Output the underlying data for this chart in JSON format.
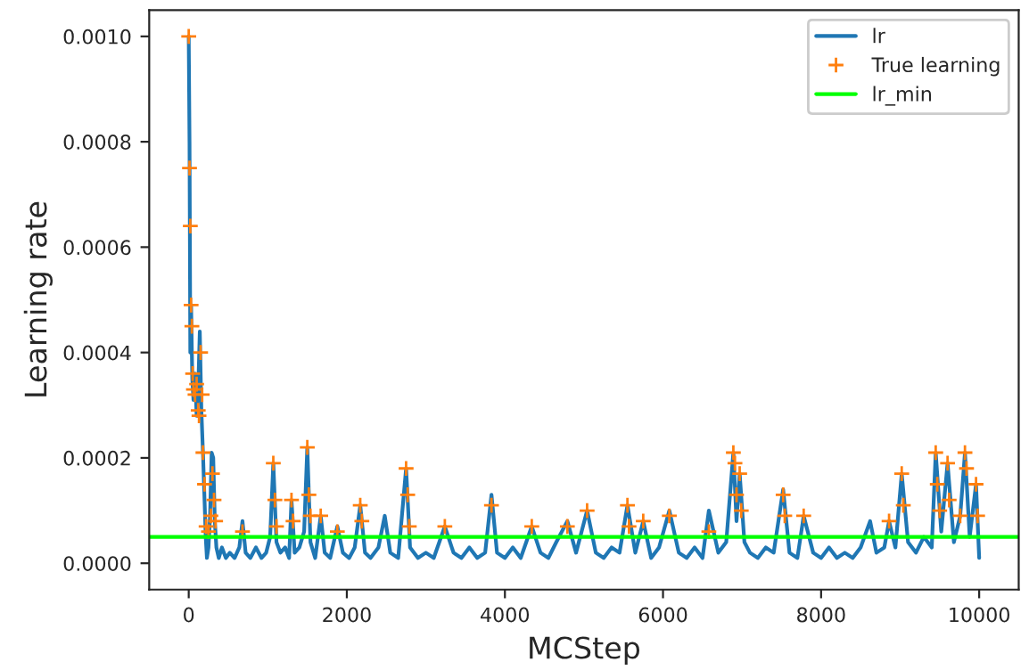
{
  "chart_data": {
    "type": "line",
    "xlabel": "MCStep",
    "ylabel": "Learning rate",
    "xlim": [
      -500,
      10500
    ],
    "xticks": [
      0,
      2000,
      4000,
      6000,
      8000,
      10000
    ],
    "ylim": [
      -5e-05,
      0.00105
    ],
    "yticks": [
      {
        "value": 0,
        "label": "0.0000"
      },
      {
        "value": 0.0002,
        "label": "0.0002"
      },
      {
        "value": 0.0004,
        "label": "0.0004"
      },
      {
        "value": 0.0006,
        "label": "0.0006"
      },
      {
        "value": 0.0008,
        "label": "0.0008"
      },
      {
        "value": 0.001,
        "label": "0.0010"
      }
    ],
    "grid": false,
    "legend": "top right",
    "series": [
      {
        "name": "lr",
        "color": "#1f77b4",
        "line_style": "solid",
        "x": [
          0,
          10,
          20,
          30,
          45,
          60,
          80,
          100,
          120,
          140,
          160,
          180,
          200,
          215,
          230,
          250,
          270,
          290,
          310,
          330,
          350,
          380,
          420,
          470,
          520,
          580,
          640,
          680,
          720,
          780,
          850,
          920,
          980,
          1030,
          1070,
          1110,
          1160,
          1220,
          1270,
          1300,
          1340,
          1400,
          1460,
          1500,
          1540,
          1600,
          1670,
          1720,
          1790,
          1880,
          1950,
          2030,
          2100,
          2170,
          2230,
          2300,
          2400,
          2480,
          2550,
          2650,
          2750,
          2800,
          2900,
          3000,
          3100,
          3240,
          3350,
          3450,
          3550,
          3650,
          3750,
          3830,
          3900,
          4000,
          4100,
          4200,
          4340,
          4450,
          4550,
          4650,
          4790,
          4900,
          5040,
          5150,
          5250,
          5350,
          5450,
          5550,
          5650,
          5750,
          5850,
          5950,
          6080,
          6200,
          6300,
          6400,
          6500,
          6580,
          6700,
          6800,
          6890,
          6930,
          6970,
          7030,
          7100,
          7200,
          7300,
          7400,
          7520,
          7600,
          7700,
          7780,
          7900,
          8000,
          8100,
          8200,
          8300,
          8400,
          8500,
          8620,
          8700,
          8800,
          8860,
          8940,
          9020,
          9100,
          9200,
          9300,
          9400,
          9450,
          9520,
          9600,
          9680,
          9760,
          9820,
          9880,
          9960,
          10000
        ],
        "values": [
          0.001,
          0.0008,
          0.0004,
          0.00049,
          0.00035,
          0.00031,
          0.00036,
          0.00028,
          0.00033,
          0.00044,
          0.00029,
          0.00021,
          0.00012,
          5e-05,
          1e-05,
          3e-05,
          9e-05,
          0.00021,
          0.0002,
          8e-05,
          3e-05,
          1e-05,
          3e-05,
          1e-05,
          2e-05,
          1e-05,
          3e-05,
          8e-05,
          2e-05,
          1e-05,
          3e-05,
          1e-05,
          2e-05,
          5e-05,
          0.00019,
          4e-05,
          2e-05,
          3e-05,
          1e-05,
          0.00012,
          2e-05,
          3e-05,
          6e-05,
          0.00022,
          4e-05,
          1e-05,
          9e-05,
          2e-05,
          1e-05,
          7e-05,
          2e-05,
          1e-05,
          3e-05,
          0.00011,
          2e-05,
          1e-05,
          3e-05,
          9e-05,
          2e-05,
          1e-05,
          0.00018,
          3e-05,
          1e-05,
          2e-05,
          1e-05,
          7e-05,
          2e-05,
          1e-05,
          3e-05,
          1e-05,
          2e-05,
          0.00013,
          2e-05,
          1e-05,
          3e-05,
          1e-05,
          7e-05,
          2e-05,
          1e-05,
          4e-05,
          8e-05,
          2e-05,
          0.0001,
          2e-05,
          1e-05,
          3e-05,
          2e-05,
          0.00011,
          2e-05,
          8e-05,
          1e-05,
          3e-05,
          0.0001,
          2e-05,
          1e-05,
          3e-05,
          1e-05,
          0.0001,
          2e-05,
          4e-05,
          0.00021,
          8e-05,
          0.00017,
          4e-05,
          2e-05,
          1e-05,
          3e-05,
          2e-05,
          0.00014,
          2e-05,
          1e-05,
          9e-05,
          2e-05,
          1e-05,
          3e-05,
          1e-05,
          2e-05,
          1e-05,
          3e-05,
          8e-05,
          2e-05,
          3e-05,
          8e-05,
          3e-05,
          0.00017,
          4e-05,
          2e-05,
          5e-05,
          3e-05,
          0.00021,
          6e-05,
          0.00019,
          4e-05,
          9e-05,
          0.00021,
          5e-05,
          0.00015,
          1e-05
        ]
      },
      {
        "name": "True learning",
        "type": "scatter",
        "color": "#ff7f0e",
        "marker": "cross",
        "x": [
          0,
          10,
          20,
          30,
          40,
          50,
          60,
          80,
          100,
          120,
          130,
          150,
          170,
          180,
          200,
          220,
          250,
          280,
          300,
          320,
          340,
          680,
          1070,
          1090,
          1110,
          1300,
          1320,
          1500,
          1520,
          1540,
          1670,
          1880,
          2170,
          2190,
          2750,
          2770,
          2790,
          3240,
          3830,
          4340,
          4790,
          5040,
          5550,
          5570,
          5750,
          6080,
          6580,
          6890,
          6910,
          6930,
          6970,
          6990,
          7520,
          7540,
          7780,
          8860,
          9020,
          9040,
          9450,
          9470,
          9500,
          9600,
          9620,
          9760,
          9820,
          9840,
          9960,
          9980
        ],
        "values": [
          0.001,
          0.00075,
          0.00064,
          0.00049,
          0.00045,
          0.00036,
          0.00033,
          0.00032,
          0.00034,
          0.00029,
          0.00028,
          0.0004,
          0.00032,
          0.00021,
          0.00015,
          7e-05,
          6e-05,
          9e-05,
          0.00017,
          0.00012,
          8e-05,
          6e-05,
          0.00019,
          0.00012,
          7e-05,
          0.00012,
          8e-05,
          0.00022,
          0.00013,
          9e-05,
          9e-05,
          6e-05,
          0.00011,
          8e-05,
          0.00018,
          0.00013,
          7e-05,
          7e-05,
          0.00011,
          7e-05,
          7e-05,
          0.0001,
          0.00011,
          7e-05,
          8e-05,
          9e-05,
          6e-05,
          0.00021,
          0.00019,
          0.00013,
          0.00017,
          0.0001,
          0.00013,
          9e-05,
          9e-05,
          8e-05,
          0.00017,
          0.00011,
          0.00021,
          0.00015,
          0.0001,
          0.00019,
          0.00012,
          9e-05,
          0.00021,
          0.00018,
          0.00015,
          9e-05
        ]
      }
    ],
    "ref_lines": [
      {
        "axis": "y",
        "value": 5e-05,
        "label": "lr_min",
        "color": "#00ff00",
        "line_style": "solid"
      }
    ]
  }
}
